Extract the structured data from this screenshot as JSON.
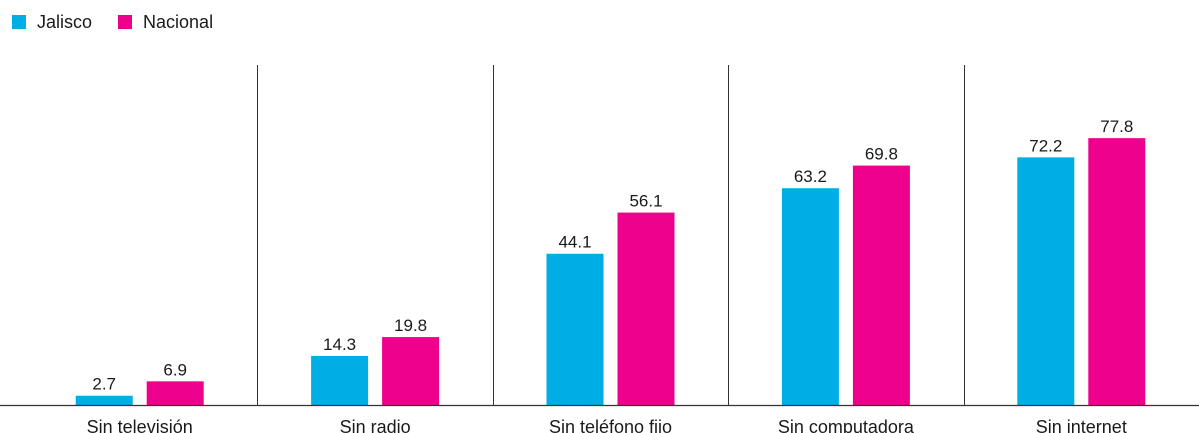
{
  "chart_data": {
    "type": "bar",
    "categories": [
      "Sin televisión",
      "Sin radio",
      "Sin teléfono fijo",
      "Sin computadora",
      "Sin internet"
    ],
    "series": [
      {
        "name": "Jalisco",
        "color": "#00aee6",
        "values": [
          2.7,
          14.3,
          44.1,
          63.2,
          72.2
        ]
      },
      {
        "name": "Nacional",
        "color": "#ec008c",
        "values": [
          6.9,
          19.8,
          56.1,
          69.8,
          77.8
        ]
      }
    ],
    "data_labels": [
      [
        "2.7",
        "14.3",
        "44.1",
        "63.2",
        "72.2"
      ],
      [
        "6.9",
        "19.8",
        "56.1",
        "69.8",
        "77.8"
      ]
    ],
    "ylim": [
      0,
      100
    ],
    "grid": false,
    "legend_position": "top-left"
  }
}
